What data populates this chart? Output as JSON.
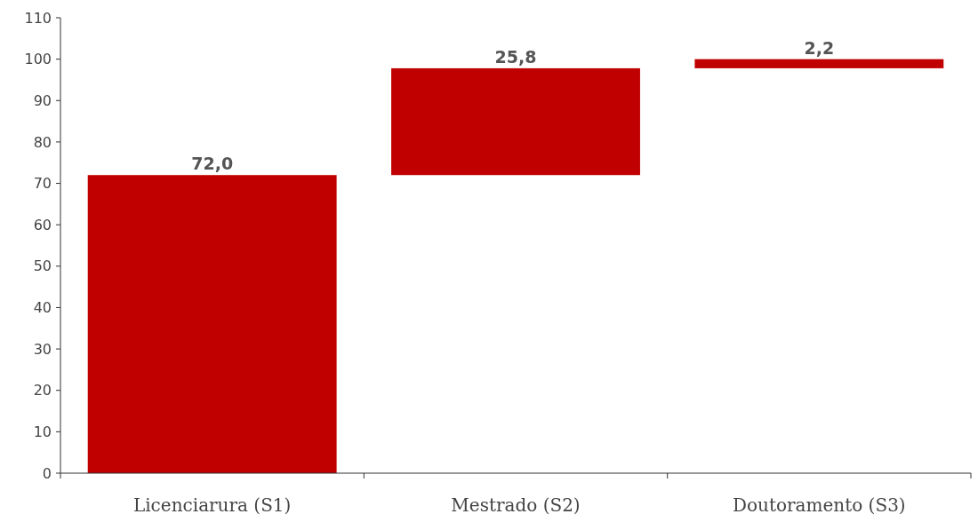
{
  "chart_data": {
    "type": "bar",
    "categories": [
      "Licenciarura (S1)",
      "Mestrado (S2)",
      "Doutoramento (S3)"
    ],
    "values": [
      72.0,
      25.8,
      2.2
    ],
    "base": [
      0,
      72.0,
      97.8
    ],
    "color": "#c00000",
    "value_labels": [
      "72,0",
      "25,8",
      "2,2"
    ],
    "ylim": [
      0,
      110
    ],
    "yticks": [
      0,
      10,
      20,
      30,
      40,
      50,
      60,
      70,
      80,
      90,
      100,
      110
    ],
    "grid": false
  }
}
